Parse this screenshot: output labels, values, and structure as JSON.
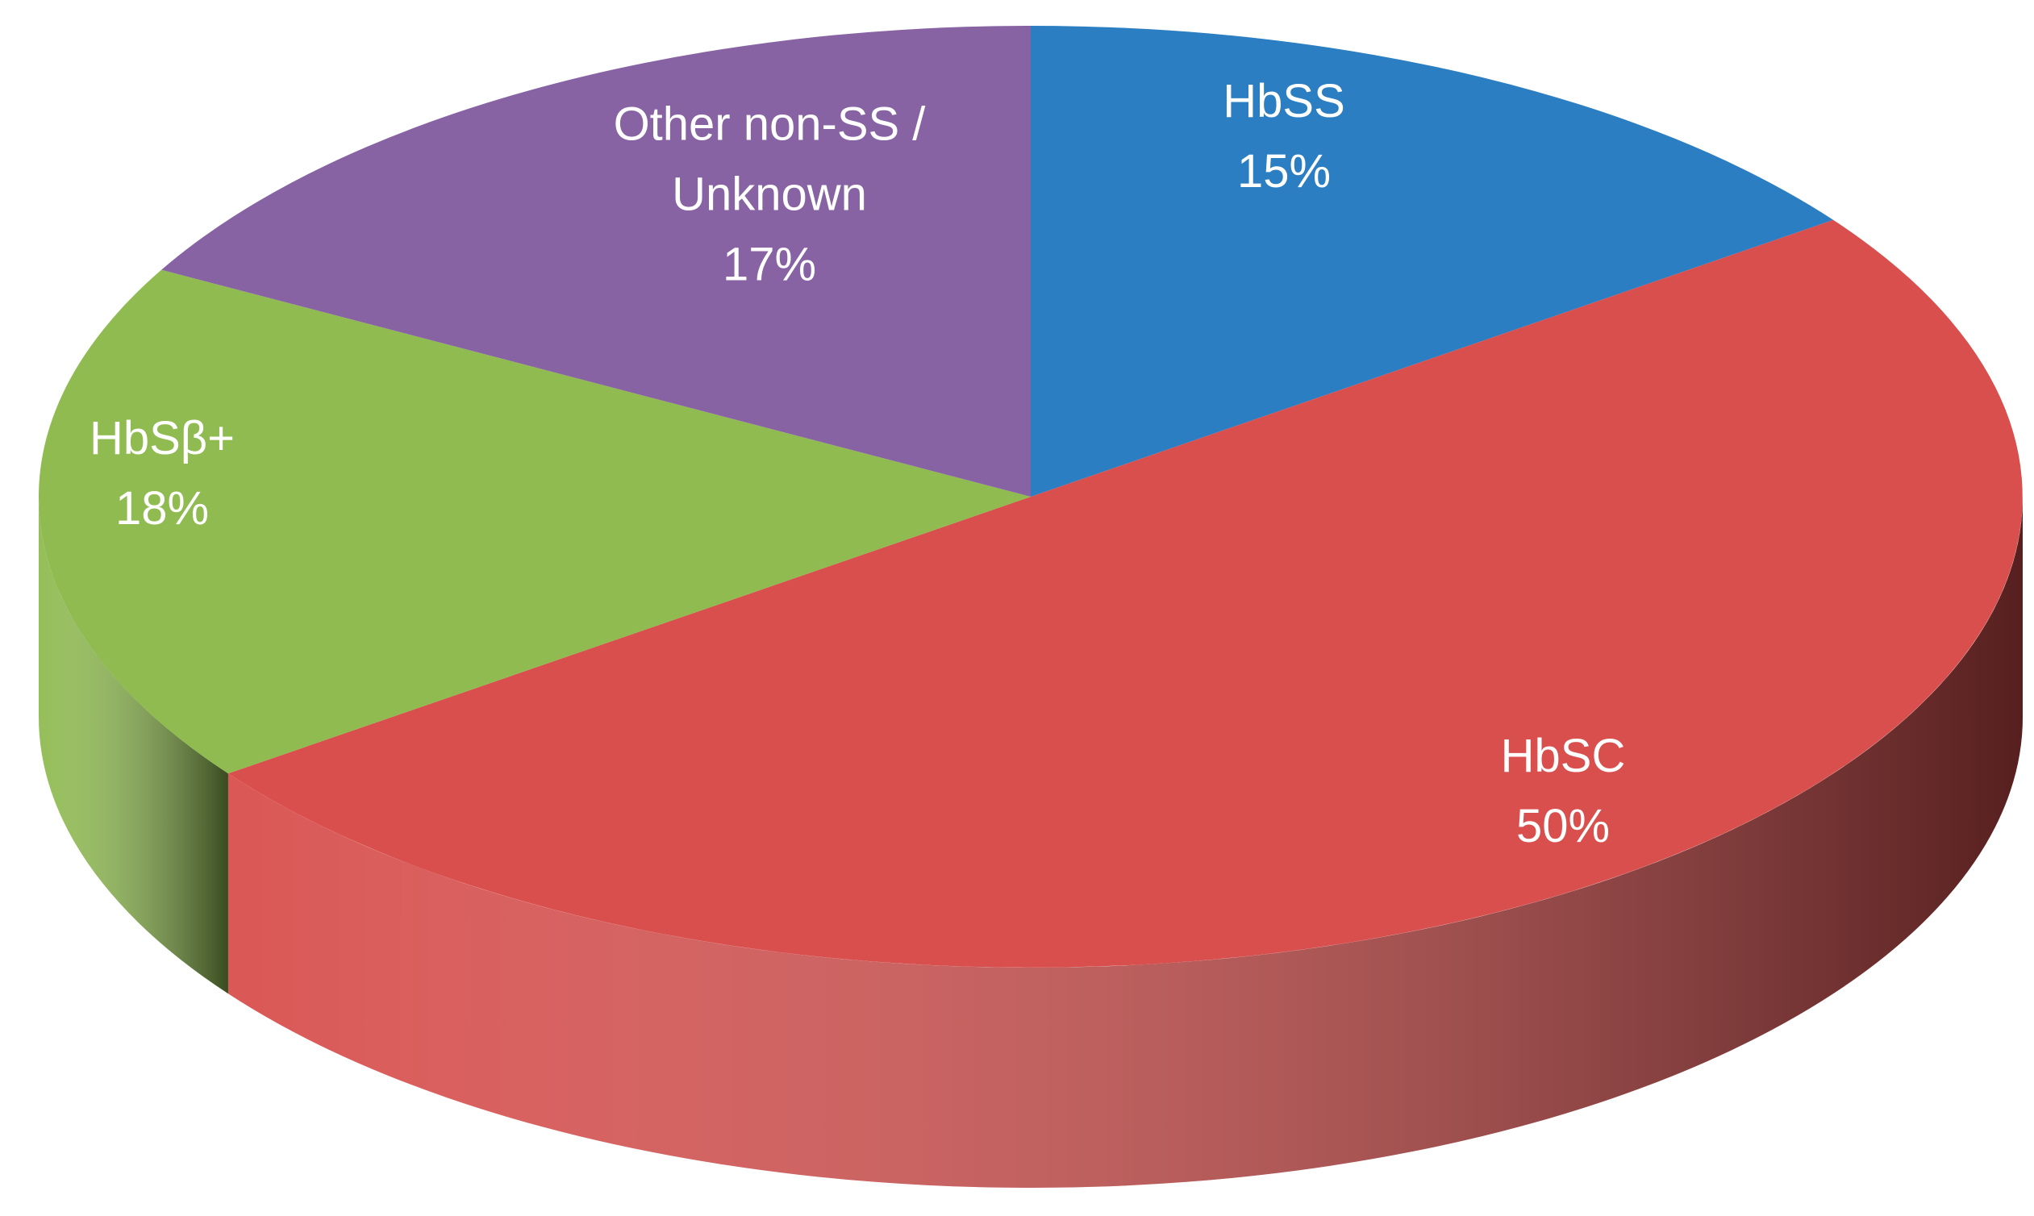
{
  "chart_data": {
    "type": "pie",
    "categories": [
      "HbSS",
      "HbSC",
      "HbSβ+",
      "Other non-SS / Unknown"
    ],
    "values": [
      15,
      50,
      18,
      17
    ],
    "value_labels": [
      "15%",
      "50%",
      "18%",
      "17%"
    ],
    "colors": [
      "#2b7ec1",
      "#d84f4d",
      "#8fbb50",
      "#8763a3"
    ]
  }
}
